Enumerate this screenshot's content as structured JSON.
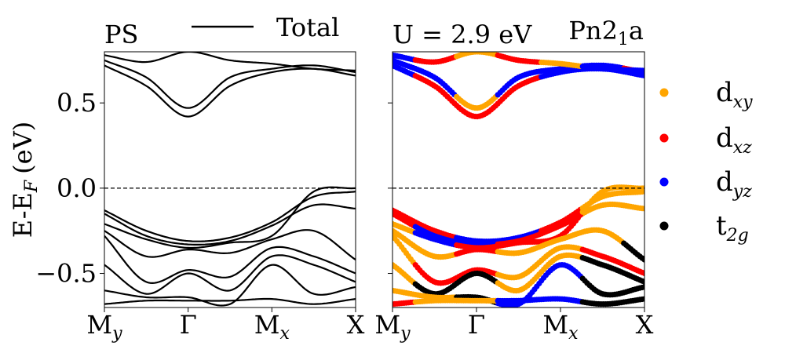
{
  "chart_data": [
    {
      "type": "line",
      "panel": "left",
      "title": "PS",
      "ylabel": "E-E_F (eV)",
      "ylabel_parts": {
        "base": "E-E",
        "sub": "F",
        "unit": "(eV)"
      },
      "xlim": [
        0,
        3
      ],
      "ylim": [
        -0.7,
        0.8
      ],
      "yticks": [
        {
          "value": 0.5,
          "label": "0.5"
        },
        {
          "value": 0.0,
          "label": "0.0"
        },
        {
          "value": -0.5,
          "label": "−0.5"
        }
      ],
      "xticks": [
        {
          "value": 0,
          "base": "M",
          "sub": "y"
        },
        {
          "value": 1,
          "base": "Γ",
          "sub": ""
        },
        {
          "value": 2,
          "base": "M",
          "sub": "x"
        },
        {
          "value": 3,
          "base": "X",
          "sub": ""
        }
      ],
      "fermi_level": 0.0,
      "legend": {
        "label": "Total",
        "color": "#000000",
        "placement": "top"
      },
      "bands_x": [
        0,
        0.5,
        1,
        1.5,
        2,
        2.5,
        3
      ],
      "series": [
        {
          "name": "b1",
          "values": [
            0.75,
            0.65,
            0.47,
            0.65,
            0.7,
            0.72,
            0.68
          ],
          "color": "#000000"
        },
        {
          "name": "b2",
          "values": [
            0.72,
            0.6,
            0.42,
            0.6,
            0.68,
            0.7,
            0.66
          ],
          "color": "#000000"
        },
        {
          "name": "b3",
          "values": [
            0.78,
            0.74,
            0.8,
            0.75,
            0.73,
            0.7,
            0.69
          ],
          "color": "#000000"
        },
        {
          "name": "b4",
          "values": [
            -0.13,
            -0.25,
            -0.31,
            -0.29,
            -0.2,
            -0.05,
            -0.02
          ],
          "color": "#000000"
        },
        {
          "name": "b5",
          "values": [
            -0.15,
            -0.28,
            -0.33,
            -0.31,
            -0.22,
            -0.1,
            -0.12
          ],
          "color": "#000000"
        },
        {
          "name": "b6",
          "values": [
            -0.21,
            -0.3,
            -0.35,
            -0.32,
            -0.28,
            -0.02,
            0.0
          ],
          "color": "#000000"
        },
        {
          "name": "b7",
          "values": [
            -0.25,
            -0.4,
            -0.36,
            -0.38,
            -0.3,
            -0.25,
            -0.42
          ],
          "color": "#000000"
        },
        {
          "name": "b8",
          "values": [
            -0.28,
            -0.55,
            -0.48,
            -0.52,
            -0.35,
            -0.4,
            -0.5
          ],
          "color": "#000000"
        },
        {
          "name": "b9",
          "values": [
            -0.45,
            -0.62,
            -0.5,
            -0.6,
            -0.4,
            -0.45,
            -0.55
          ],
          "color": "#000000"
        },
        {
          "name": "b10",
          "values": [
            -0.6,
            -0.64,
            -0.64,
            -0.68,
            -0.45,
            -0.62,
            -0.58
          ],
          "color": "#000000"
        },
        {
          "name": "b11",
          "values": [
            -0.68,
            -0.66,
            -0.66,
            -0.66,
            -0.65,
            -0.68,
            -0.65
          ],
          "color": "#000000"
        }
      ]
    },
    {
      "type": "scatter",
      "panel": "right",
      "title_left": "U = 2.9 eV",
      "title_right": {
        "base": "Pn2",
        "sub": "1",
        "tail": "a"
      },
      "xlim": [
        0,
        3
      ],
      "ylim": [
        -0.7,
        0.8
      ],
      "xticks": [
        {
          "value": 0,
          "base": "M",
          "sub": "y"
        },
        {
          "value": 1,
          "base": "Γ",
          "sub": ""
        },
        {
          "value": 2,
          "base": "M",
          "sub": "x"
        },
        {
          "value": 3,
          "base": "X",
          "sub": ""
        }
      ],
      "fermi_level": 0.0,
      "legend": [
        {
          "base": "d",
          "sub": "xy",
          "color": "#ffa500"
        },
        {
          "base": "d",
          "sub": "xz",
          "color": "#ff0000"
        },
        {
          "base": "d",
          "sub": "yz",
          "color": "#0000ff"
        },
        {
          "base": "t",
          "sub": "2g",
          "color": "#000000"
        }
      ],
      "bands_x": [
        0,
        0.5,
        1,
        1.5,
        2,
        2.5,
        3
      ],
      "series": [
        {
          "name": "b1",
          "values": [
            0.75,
            0.65,
            0.47,
            0.65,
            0.7,
            0.72,
            0.68
          ],
          "colors": [
            "#0000ff",
            "#0000ff",
            "#ffa500",
            "#0000ff",
            "#0000ff",
            "#0000ff",
            "#ff0000"
          ]
        },
        {
          "name": "b2",
          "values": [
            0.72,
            0.6,
            0.42,
            0.6,
            0.68,
            0.7,
            0.66
          ],
          "colors": [
            "#0000ff",
            "#ff0000",
            "#ff0000",
            "#ff0000",
            "#0000ff",
            "#0000ff",
            "#0000ff"
          ]
        },
        {
          "name": "b3",
          "values": [
            0.78,
            0.74,
            0.8,
            0.75,
            0.73,
            0.7,
            0.69
          ],
          "colors": [
            "#0000ff",
            "#ff0000",
            "#ffa500",
            "#ff0000",
            "#ffa500",
            "#0000ff",
            "#0000ff"
          ]
        },
        {
          "name": "b4",
          "values": [
            -0.13,
            -0.25,
            -0.31,
            -0.29,
            -0.2,
            -0.05,
            -0.02
          ],
          "colors": [
            "#ff0000",
            "#ff0000",
            "#0000ff",
            "#0000ff",
            "#ff0000",
            "#ffa500",
            "#ffa500"
          ]
        },
        {
          "name": "b5",
          "values": [
            -0.15,
            -0.28,
            -0.33,
            -0.31,
            -0.22,
            -0.1,
            -0.12
          ],
          "colors": [
            "#ff0000",
            "#0000ff",
            "#0000ff",
            "#ff0000",
            "#ff0000",
            "#ffa500",
            "#ffa500"
          ]
        },
        {
          "name": "b6",
          "values": [
            -0.21,
            -0.3,
            -0.35,
            -0.32,
            -0.28,
            -0.02,
            0.0
          ],
          "colors": [
            "#ffa500",
            "#0000ff",
            "#ff0000",
            "#ff0000",
            "#ff0000",
            "#ffa500",
            "#ffa500"
          ]
        },
        {
          "name": "b7",
          "values": [
            -0.25,
            -0.4,
            -0.36,
            -0.38,
            -0.3,
            -0.25,
            -0.42
          ],
          "colors": [
            "#ffa500",
            "#ffa500",
            "#ff0000",
            "#ffa500",
            "#ffa500",
            "#ffa500",
            "#000000"
          ]
        },
        {
          "name": "b8",
          "values": [
            -0.28,
            -0.55,
            -0.48,
            -0.52,
            -0.35,
            -0.4,
            -0.5
          ],
          "colors": [
            "#ffa500",
            "#ff0000",
            "#ff0000",
            "#ffa500",
            "#ffa500",
            "#ff0000",
            "#ff0000"
          ]
        },
        {
          "name": "b9",
          "values": [
            -0.45,
            -0.62,
            -0.5,
            -0.6,
            -0.4,
            -0.45,
            -0.55
          ],
          "colors": [
            "#ffa500",
            "#000000",
            "#000000",
            "#ffa500",
            "#ffa500",
            "#000000",
            "#000000"
          ]
        },
        {
          "name": "b10",
          "values": [
            -0.6,
            -0.64,
            -0.64,
            -0.68,
            -0.45,
            -0.62,
            -0.58
          ],
          "colors": [
            "#ffa500",
            "#ffa500",
            "#000000",
            "#0000ff",
            "#0000ff",
            "#000000",
            "#000000"
          ]
        },
        {
          "name": "b11",
          "values": [
            -0.68,
            -0.66,
            -0.66,
            -0.66,
            -0.65,
            -0.68,
            -0.65
          ],
          "colors": [
            "#ff0000",
            "#ffa500",
            "#ffa500",
            "#0000ff",
            "#0000ff",
            "#000000",
            "#000000"
          ]
        }
      ]
    }
  ]
}
